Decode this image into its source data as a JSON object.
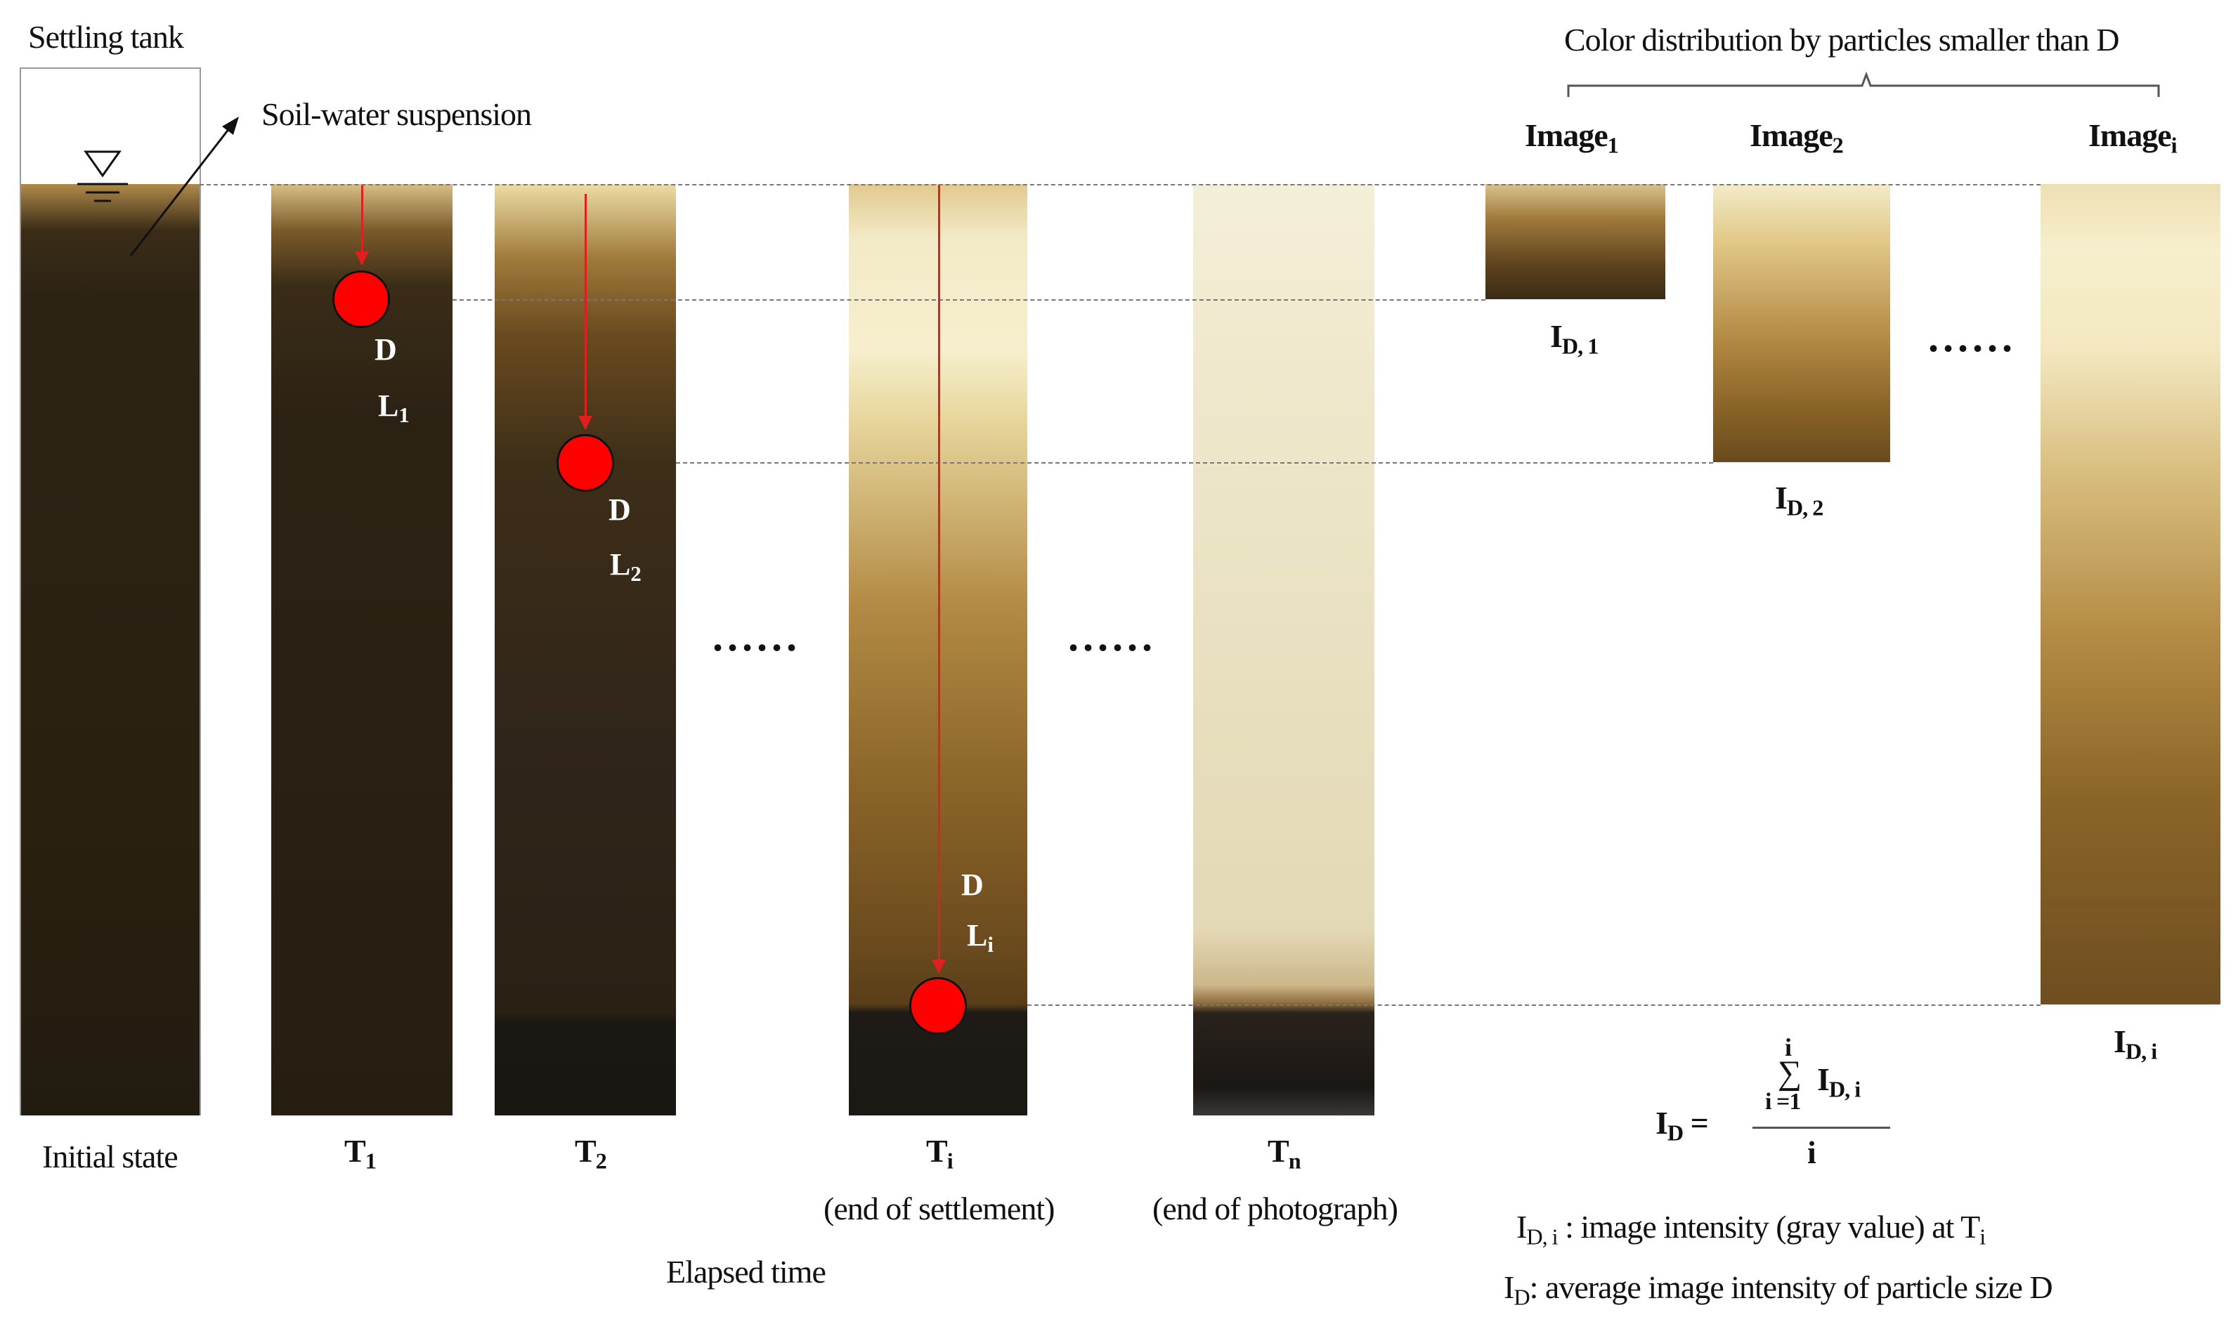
{
  "labels": {
    "settling_tank": "Settling tank",
    "soil_water": "Soil-water suspension",
    "initial_state": "Initial state",
    "elapsed_time": "Elapsed time",
    "color_distribution": "Color distribution  by particles  smaller  than D",
    "t1": "T",
    "t1_sub": "1",
    "t2": "T",
    "t2_sub": "2",
    "ti": "T",
    "ti_sub": "i",
    "tn": "T",
    "tn_sub": "n",
    "end_settlement": "(end of settlement)",
    "end_photograph": "(end of photograph)",
    "dots": "......",
    "d": "D",
    "l1": "L",
    "l1_sub": "1",
    "l2": "L",
    "l2_sub": "2",
    "li": "L",
    "li_sub": "i",
    "image1": "Image",
    "image1_sub": "1",
    "image2": "Image",
    "image2_sub": "2",
    "imagei": "Image",
    "imagei_sub": "i",
    "id1": "I",
    "id1_sub": "D, 1",
    "id2": "I",
    "id2_sub": "D, 2",
    "idi": "I",
    "idi_sub": "D, i",
    "formula_lhs": "I",
    "formula_lhs_sub": "D",
    "formula_eq": " =",
    "formula_top": "i",
    "formula_sigma": "∑",
    "formula_bottom": "i =1",
    "formula_term": "I",
    "formula_term_sub": "D, i",
    "formula_den": "i",
    "def1_i": "I",
    "def1_sub": "D, i",
    "def1_text": " : image  intensity  (gray value)  at T",
    "def1_tsub": "i",
    "def2_i": "I",
    "def2_sub": "D",
    "def2_text": ": average  image  intensity  of particle  size  D"
  },
  "colors": {
    "dark": "#2a2114",
    "brown": "#6b4a1e",
    "light": "#f2eac6",
    "red": "#ff0000"
  }
}
